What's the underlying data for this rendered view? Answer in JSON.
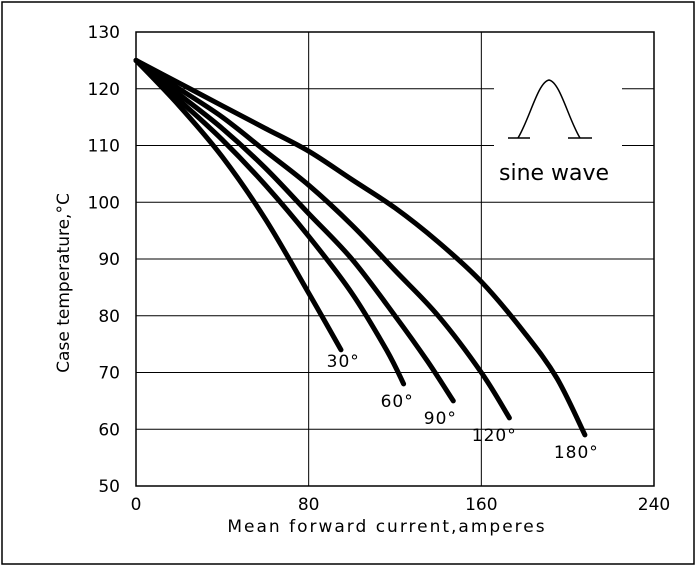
{
  "chart_data": {
    "type": "line",
    "xlabel": "Mean forward current,amperes",
    "ylabel": "Case temperature,°C",
    "xlim": [
      0,
      240
    ],
    "ylim": [
      50,
      130
    ],
    "grid": true,
    "x_ticks": [
      "0",
      "80",
      "160",
      "240"
    ],
    "y_ticks": [
      "50",
      "60",
      "70",
      "80",
      "90",
      "100",
      "110",
      "120",
      "130"
    ],
    "series": [
      {
        "name": "30°",
        "x": [
          0,
          20,
          40,
          60,
          80,
          95
        ],
        "y": [
          125,
          117,
          108,
          97,
          84,
          74
        ]
      },
      {
        "name": "60°",
        "x": [
          0,
          20,
          40,
          60,
          80,
          100,
          116,
          124
        ],
        "y": [
          125,
          118,
          111,
          103,
          94,
          84,
          74,
          68
        ]
      },
      {
        "name": "90°",
        "x": [
          0,
          20,
          40,
          60,
          80,
          100,
          120,
          135,
          147
        ],
        "y": [
          125,
          119,
          113,
          106,
          98,
          90,
          80,
          72,
          65
        ]
      },
      {
        "name": "120°",
        "x": [
          0,
          20,
          40,
          60,
          80,
          100,
          120,
          140,
          160,
          173
        ],
        "y": [
          125,
          120,
          115,
          109,
          103,
          96,
          88,
          80,
          70,
          62
        ]
      },
      {
        "name": "180°",
        "x": [
          0,
          20,
          40,
          60,
          80,
          100,
          120,
          140,
          160,
          180,
          195,
          208
        ],
        "y": [
          125,
          121,
          117,
          113,
          109,
          104,
          99,
          93,
          86,
          77,
          69,
          59
        ]
      }
    ],
    "annotations": [
      {
        "text": "30°",
        "x": 96,
        "y": 72
      },
      {
        "text": "60°",
        "x": 121,
        "y": 65
      },
      {
        "text": "90°",
        "x": 141,
        "y": 62
      },
      {
        "text": "120°",
        "x": 166,
        "y": 59
      },
      {
        "text": "180°",
        "x": 204,
        "y": 56
      }
    ],
    "inset": {
      "label": "sine wave",
      "shape": "half-sine pulse"
    }
  }
}
